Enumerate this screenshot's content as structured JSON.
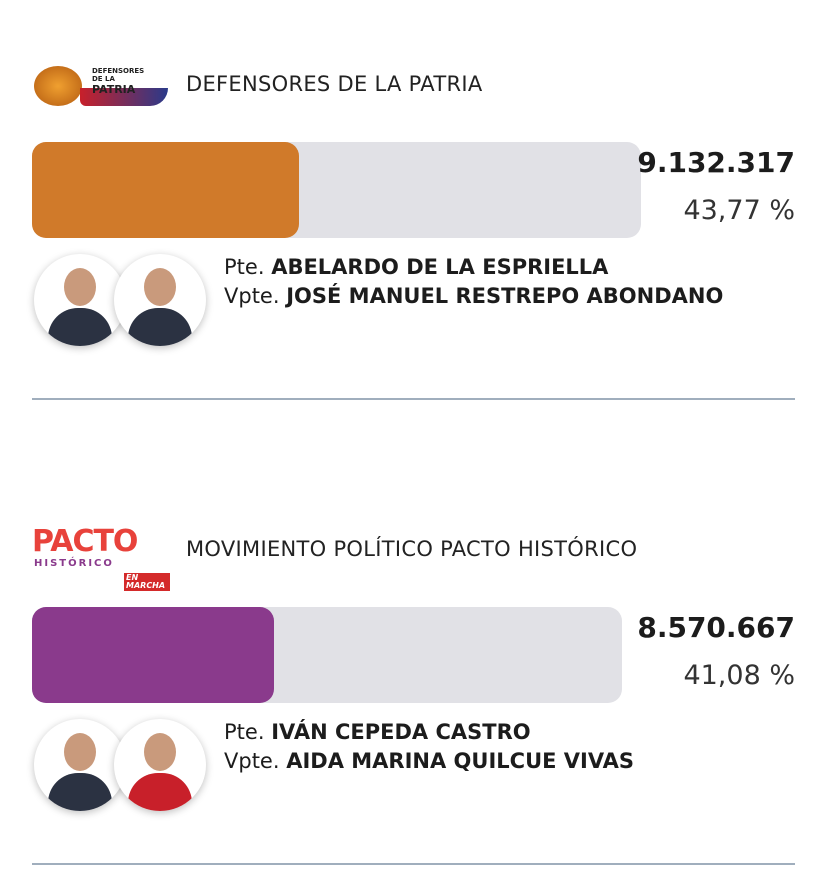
{
  "parties": [
    {
      "name": "DEFENSORES DE LA PATRIA",
      "logo_lines": [
        "DEFENSORES",
        "DE LA",
        "PATRIA"
      ],
      "votes": "9.132.317",
      "percent": 43.77,
      "percent_label": "43,77 %",
      "color": "#d07a2a",
      "president_prefix": "Pte.",
      "president": "ABELARDO DE LA ESPRIELLA",
      "vice_prefix": "Vpte.",
      "vice": "JOSÉ MANUEL RESTREPO ABONDANO"
    },
    {
      "name": "MOVIMIENTO POLÍTICO PACTO HISTÓRICO",
      "logo_lines": [
        "PACTO",
        "HISTÓRICO",
        "EN MARCHA"
      ],
      "votes": "8.570.667",
      "percent": 41.08,
      "percent_label": "41,08 %",
      "color": "#8a3a8c",
      "president_prefix": "Pte.",
      "president": "IVÁN CEPEDA CASTRO",
      "vice_prefix": "Vpte.",
      "vice": "AIDA MARINA QUILCUE VIVAS"
    }
  ]
}
